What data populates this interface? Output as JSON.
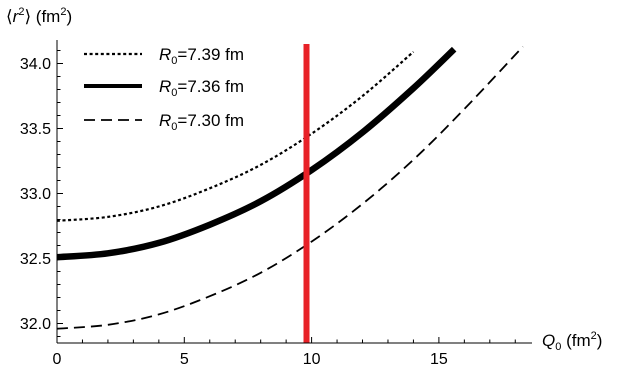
{
  "chart_data": {
    "type": "line",
    "title": "",
    "xlabel": {
      "main": "Q",
      "sub": "0",
      "unit_prefix": " (fm",
      "unit_sup": "2",
      "unit_suffix": ")"
    },
    "ylabel": {
      "open": "⟨",
      "main": "r",
      "sup": "2",
      "close": "⟩",
      "unit_prefix": " (fm",
      "unit_sup": "2",
      "unit_suffix": ")"
    },
    "xlim": [
      0,
      18.5
    ],
    "ylim": [
      31.85,
      34.15
    ],
    "xticks": [
      0,
      5,
      10,
      15
    ],
    "xtick_labels": [
      "0",
      "5",
      "10",
      "15"
    ],
    "yticks": [
      32.0,
      32.5,
      33.0,
      33.5,
      34.0
    ],
    "ytick_labels": [
      "32.0",
      "32.5",
      "33.0",
      "33.5",
      "34.0"
    ],
    "grid": false,
    "legend_position": "top-left",
    "series": [
      {
        "name": {
          "main": "R",
          "sub": "0",
          "rest": "=7.39 fm"
        },
        "style": "dotted",
        "color": "#000000",
        "x": [
          0,
          2,
          4,
          6,
          8,
          10,
          12,
          14
        ],
        "y": [
          32.79,
          32.82,
          32.9,
          33.04,
          33.22,
          33.46,
          33.75,
          34.09
        ]
      },
      {
        "name": {
          "main": "R",
          "sub": "0",
          "rest": "=7.36 fm"
        },
        "style": "thick-solid",
        "color": "#000000",
        "x": [
          0,
          2,
          4,
          6,
          8,
          10,
          12,
          14,
          15.6
        ],
        "y": [
          32.51,
          32.54,
          32.62,
          32.76,
          32.94,
          33.18,
          33.47,
          33.81,
          34.11
        ]
      },
      {
        "name": {
          "main": "R",
          "sub": "0",
          "rest": "=7.30 fm"
        },
        "style": "dashed",
        "color": "#000000",
        "x": [
          0,
          2,
          4,
          6,
          8,
          10,
          12,
          14,
          16,
          18.3
        ],
        "y": [
          31.96,
          31.99,
          32.07,
          32.21,
          32.39,
          32.63,
          32.92,
          33.26,
          33.65,
          34.13
        ]
      }
    ],
    "vertical_line": {
      "x": 9.8,
      "color": "#e82127"
    }
  }
}
